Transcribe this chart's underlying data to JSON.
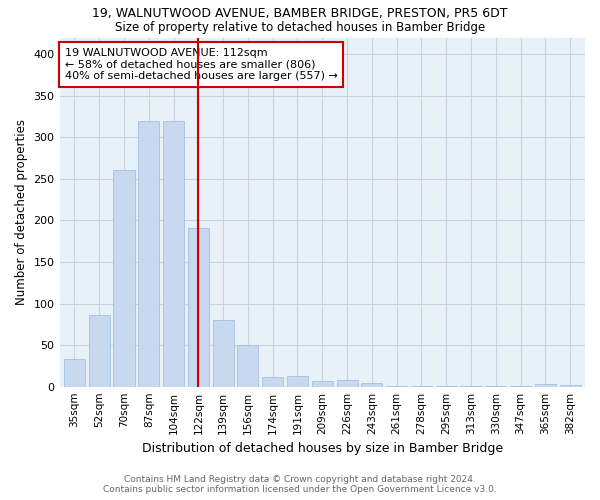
{
  "title": "19, WALNUTWOOD AVENUE, BAMBER BRIDGE, PRESTON, PR5 6DT",
  "subtitle": "Size of property relative to detached houses in Bamber Bridge",
  "xlabel": "Distribution of detached houses by size in Bamber Bridge",
  "ylabel": "Number of detached properties",
  "categories": [
    "35sqm",
    "52sqm",
    "70sqm",
    "87sqm",
    "104sqm",
    "122sqm",
    "139sqm",
    "156sqm",
    "174sqm",
    "191sqm",
    "209sqm",
    "226sqm",
    "243sqm",
    "261sqm",
    "278sqm",
    "295sqm",
    "313sqm",
    "330sqm",
    "347sqm",
    "365sqm",
    "382sqm"
  ],
  "values": [
    33,
    86,
    261,
    320,
    320,
    191,
    80,
    50,
    12,
    13,
    7,
    8,
    4,
    1,
    1,
    1,
    1,
    1,
    1,
    3,
    2
  ],
  "bar_color": "#c8d8ee",
  "bar_edge_color": "#9ab8dd",
  "background_color": "#e8f0f8",
  "grid_color": "#c8d4e4",
  "red_line_x": 5,
  "annotation_title": "19 WALNUTWOOD AVENUE: 112sqm",
  "annotation_line1": "← 58% of detached houses are smaller (806)",
  "annotation_line2": "40% of semi-detached houses are larger (557) →",
  "annotation_box_color": "#ffffff",
  "annotation_box_edge": "#cc0000",
  "red_line_color": "#cc0000",
  "ylim": [
    0,
    420
  ],
  "yticks": [
    0,
    50,
    100,
    150,
    200,
    250,
    300,
    350,
    400
  ],
  "footer1": "Contains HM Land Registry data © Crown copyright and database right 2024.",
  "footer2": "Contains public sector information licensed under the Open Government Licence v3.0."
}
